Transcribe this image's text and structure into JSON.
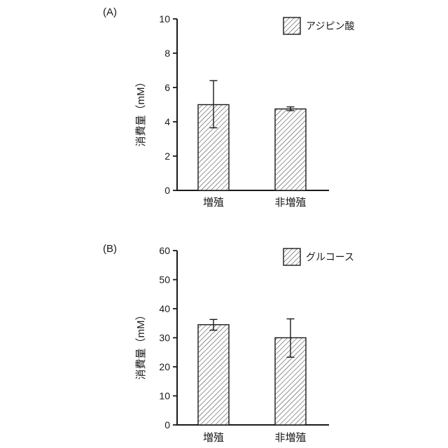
{
  "figure": {
    "background": "#ffffff",
    "ink_color": "#1a1a1a",
    "hatch_color": "#3d3d3d",
    "panel_count": 2
  },
  "chart_data": [
    {
      "type": "bar",
      "panel_label": "(A)",
      "ylabel": "消費量（mM）",
      "categories": [
        "増殖",
        "非増殖"
      ],
      "values": [
        5.0,
        4.75
      ],
      "error_bars": {
        "lower": [
          3.65,
          4.65
        ],
        "upper": [
          6.4,
          4.87
        ]
      },
      "ylim": [
        0,
        10
      ],
      "yticks": [
        0,
        2,
        4,
        6,
        8,
        10
      ],
      "legend": {
        "label": "アジピン酸",
        "position": "top-right",
        "swatch": "diagonal-hatch"
      },
      "bar_fill": "diagonal-hatch",
      "grid": false
    },
    {
      "type": "bar",
      "panel_label": "(B)",
      "ylabel": "消費量（mM）",
      "categories": [
        "増殖",
        "非増殖"
      ],
      "values": [
        34.5,
        30.0
      ],
      "error_bars": {
        "lower": [
          32.6,
          23.3
        ],
        "upper": [
          36.3,
          36.5
        ]
      },
      "ylim": [
        0,
        60
      ],
      "yticks": [
        0,
        10,
        20,
        30,
        40,
        50,
        60
      ],
      "legend": {
        "label": "グルコース",
        "position": "top-right",
        "swatch": "diagonal-hatch"
      },
      "bar_fill": "diagonal-hatch",
      "grid": false
    }
  ]
}
